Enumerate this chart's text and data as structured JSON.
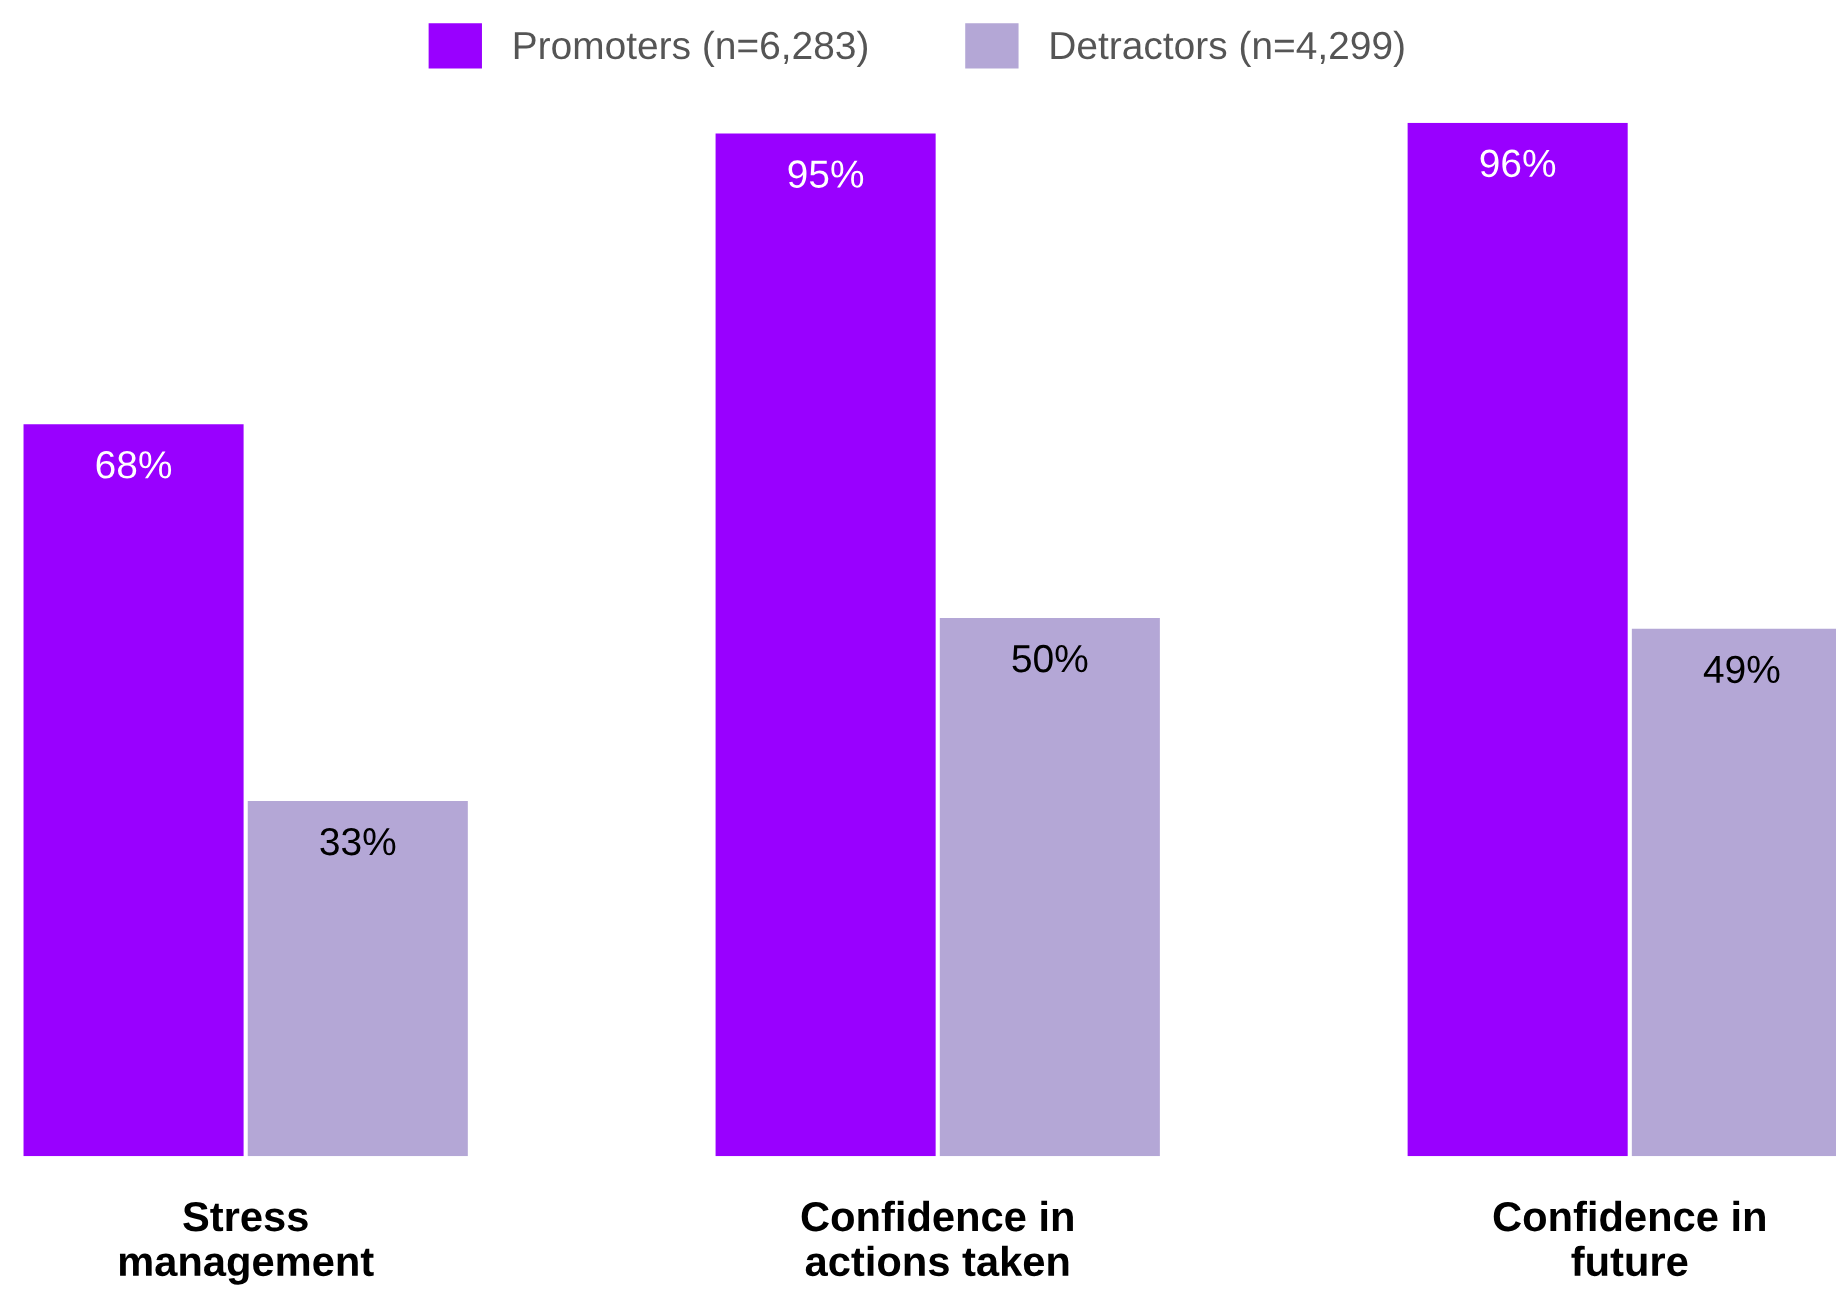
{
  "chart_data": {
    "type": "bar",
    "categories": [
      "Stress\nmanagement",
      "Confidence in\nactions taken",
      "Confidence in\nfuture"
    ],
    "series": [
      {
        "name": "Promoters (n=6,283)",
        "color": "#9900ff",
        "values": [
          68,
          95,
          96
        ],
        "value_labels": [
          "68%",
          "95%",
          "96%"
        ]
      },
      {
        "name": "Detractors (n=4,299)",
        "color": "#b4a7d6",
        "values": [
          33,
          50,
          49
        ],
        "value_labels": [
          "33%",
          "50%",
          "49%"
        ]
      }
    ],
    "legend": "top",
    "grid": false
  }
}
